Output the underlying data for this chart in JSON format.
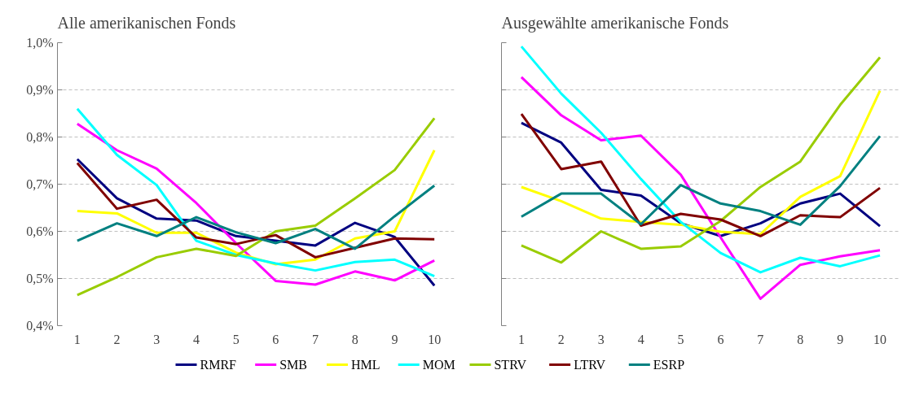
{
  "chart_data": [
    {
      "type": "line",
      "title": "Alle amerikanischen Fonds",
      "categories": [
        "1",
        "2",
        "3",
        "4",
        "5",
        "6",
        "7",
        "8",
        "9",
        "10"
      ],
      "ylim": [
        0.4,
        1.0
      ],
      "yticks": [
        {
          "value": 0.4,
          "label": "0,4%"
        },
        {
          "value": 0.5,
          "label": "0,5%"
        },
        {
          "value": 0.6,
          "label": "0,6%"
        },
        {
          "value": 0.7,
          "label": "0,7%"
        },
        {
          "value": 0.8,
          "label": "0,8%"
        },
        {
          "value": 0.9,
          "label": "0,9%"
        },
        {
          "value": 1.0,
          "label": "1,0%"
        }
      ],
      "grid": "y",
      "legend": "bottom",
      "marker": "none",
      "line_style": "solid",
      "series": [
        {
          "name": "RMRF",
          "color": "#000080",
          "values": [
            0.753,
            0.67,
            0.627,
            0.623,
            0.59,
            0.58,
            0.57,
            0.618,
            0.588,
            0.485
          ]
        },
        {
          "name": "SMB",
          "color": "#ff00ff",
          "values": [
            0.828,
            0.772,
            0.733,
            0.66,
            0.575,
            0.495,
            0.487,
            0.515,
            0.496,
            0.538
          ]
        },
        {
          "name": "HML",
          "color": "#ffff00",
          "values": [
            0.643,
            0.638,
            0.597,
            0.597,
            0.555,
            0.53,
            0.54,
            0.585,
            0.6,
            0.772
          ]
        },
        {
          "name": "MOM",
          "color": "#00ffff",
          "values": [
            0.86,
            0.762,
            0.698,
            0.58,
            0.55,
            0.532,
            0.517,
            0.535,
            0.54,
            0.505
          ]
        },
        {
          "name": "STRV",
          "color": "#99cc00",
          "values": [
            0.465,
            0.503,
            0.545,
            0.563,
            0.548,
            0.6,
            0.612,
            0.67,
            0.73,
            0.84
          ]
        },
        {
          "name": "LTRV",
          "color": "#800000",
          "values": [
            0.745,
            0.648,
            0.667,
            0.587,
            0.573,
            0.592,
            0.545,
            0.565,
            0.585,
            0.583
          ]
        },
        {
          "name": "ESRP",
          "color": "#008080",
          "values": [
            0.58,
            0.617,
            0.59,
            0.63,
            0.598,
            0.575,
            0.605,
            0.563,
            0.632,
            0.697
          ]
        }
      ]
    },
    {
      "type": "line",
      "title": "Ausgewählte amerikanische Fonds",
      "categories": [
        "1",
        "2",
        "3",
        "4",
        "5",
        "6",
        "7",
        "8",
        "9",
        "10"
      ],
      "ylim": [
        0.4,
        1.0
      ],
      "yticks": [
        {
          "value": 0.4,
          "label": null
        },
        {
          "value": 0.5,
          "label": null
        },
        {
          "value": 0.6,
          "label": null
        },
        {
          "value": 0.7,
          "label": null
        },
        {
          "value": 0.8,
          "label": null
        },
        {
          "value": 0.9,
          "label": null
        },
        {
          "value": 1.0,
          "label": null
        }
      ],
      "grid": "y",
      "legend": "bottom",
      "marker": "none",
      "line_style": "solid",
      "tick_labels": "x",
      "series": [
        {
          "name": "RMRF",
          "color": "#000080",
          "values": [
            0.83,
            0.788,
            0.688,
            0.676,
            0.617,
            0.59,
            0.617,
            0.659,
            0.68,
            0.611
          ]
        },
        {
          "name": "SMB",
          "color": "#ff00ff",
          "values": [
            0.927,
            0.846,
            0.793,
            0.803,
            0.72,
            0.587,
            0.457,
            0.529,
            0.547,
            0.56
          ]
        },
        {
          "name": "HML",
          "color": "#ffff00",
          "values": [
            0.694,
            0.664,
            0.627,
            0.62,
            0.614,
            0.599,
            0.594,
            0.673,
            0.717,
            0.898
          ]
        },
        {
          "name": "MOM",
          "color": "#00ffff",
          "values": [
            0.992,
            0.892,
            0.809,
            0.711,
            0.62,
            0.554,
            0.513,
            0.544,
            0.526,
            0.549
          ]
        },
        {
          "name": "STRV",
          "color": "#99cc00",
          "values": [
            0.57,
            0.534,
            0.6,
            0.563,
            0.568,
            0.622,
            0.694,
            0.748,
            0.868,
            0.969
          ]
        },
        {
          "name": "LTRV",
          "color": "#800000",
          "values": [
            0.849,
            0.732,
            0.748,
            0.612,
            0.637,
            0.625,
            0.59,
            0.634,
            0.63,
            0.692
          ]
        },
        {
          "name": "ESRP",
          "color": "#008080",
          "values": [
            0.631,
            0.68,
            0.68,
            0.615,
            0.698,
            0.659,
            0.643,
            0.614,
            0.696,
            0.802
          ]
        }
      ]
    }
  ]
}
